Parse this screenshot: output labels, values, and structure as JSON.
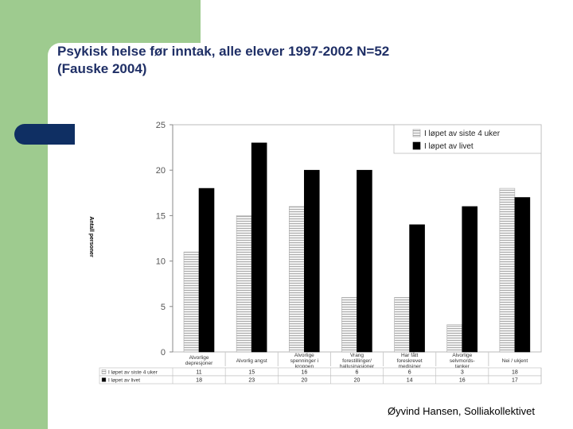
{
  "slide": {
    "title_line1": "Psykisk helse før inntak, alle elever 1997-2002 N=52",
    "title_line2": "(Fauske 2004)",
    "footer": "Øyvind Hansen, Solliakollektivet"
  },
  "chart_data": {
    "type": "bar",
    "title": "",
    "xlabel": "",
    "ylabel": "Antall personer",
    "ylim": [
      0,
      25
    ],
    "yticks": [
      0,
      5,
      10,
      15,
      20,
      25
    ],
    "grid": false,
    "legend": "top-right",
    "categories": [
      [
        "Alvorlige",
        "depresjoner"
      ],
      [
        "Alvorlig angst"
      ],
      [
        "Alvorlige",
        "spenninger i",
        "kroppen"
      ],
      [
        "Vrang",
        "forestillinger/",
        "hallusinasjoner"
      ],
      [
        "Har fått",
        "foreskrevet",
        "medisiner"
      ],
      [
        "Alvorlige",
        "selvmords-",
        "tanker"
      ],
      [
        "Nei / ukjent"
      ]
    ],
    "series": [
      {
        "name": "I løpet av siste 4 uker",
        "table_label": "I løpet av siste 4 uker",
        "values": [
          11,
          15,
          16,
          6,
          6,
          3,
          18
        ],
        "color": "#e8e8e8"
      },
      {
        "name": "I løpet av livet",
        "table_label": "I løpet av livet",
        "values": [
          18,
          23,
          20,
          20,
          14,
          16,
          17
        ],
        "color": "#000000"
      }
    ]
  }
}
